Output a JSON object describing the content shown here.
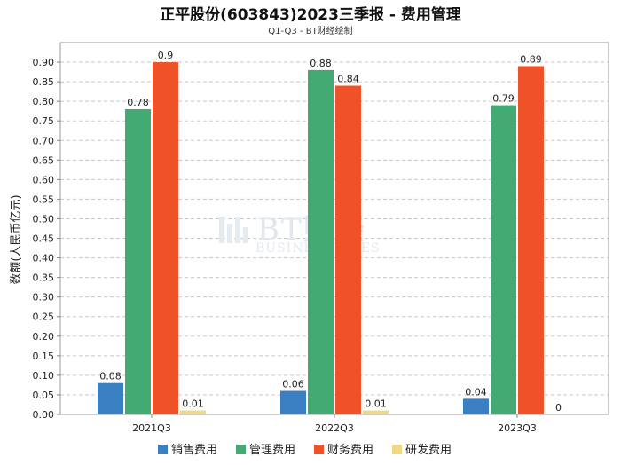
{
  "chart_data": {
    "type": "bar",
    "title": "正平股份(603843)2023三季报 - 费用管理",
    "subtitle": "Q1-Q3 - BT财经绘制",
    "ylabel": "数额(人民币亿元)",
    "xlabel": "",
    "categories": [
      "2021Q3",
      "2022Q3",
      "2023Q3"
    ],
    "ylim": [
      0,
      0.95
    ],
    "yticks": [
      "0.00",
      "0.05",
      "0.10",
      "0.15",
      "0.20",
      "0.25",
      "0.30",
      "0.35",
      "0.40",
      "0.45",
      "0.50",
      "0.55",
      "0.60",
      "0.65",
      "0.70",
      "0.75",
      "0.80",
      "0.85",
      "0.90"
    ],
    "grid": true,
    "legend_position": "bottom",
    "series": [
      {
        "name": "销售费用",
        "color": "#3a7fc1",
        "values": [
          0.08,
          0.06,
          0.04
        ],
        "labels": [
          "0.08",
          "0.06",
          "0.04"
        ]
      },
      {
        "name": "管理费用",
        "color": "#43aa74",
        "values": [
          0.78,
          0.88,
          0.79
        ],
        "labels": [
          "0.78",
          "0.88",
          "0.79"
        ]
      },
      {
        "name": "财务费用",
        "color": "#f05228",
        "values": [
          0.9,
          0.84,
          0.89
        ],
        "labels": [
          "0.9",
          "0.84",
          "0.89"
        ]
      },
      {
        "name": "研发费用",
        "color": "#f0d880",
        "values": [
          0.01,
          0.01,
          0.0
        ],
        "labels": [
          "0.01",
          "0.01",
          "0"
        ]
      }
    ]
  },
  "watermark": {
    "brand": "BT财经",
    "tagline": "BUSINESSTIMES"
  }
}
